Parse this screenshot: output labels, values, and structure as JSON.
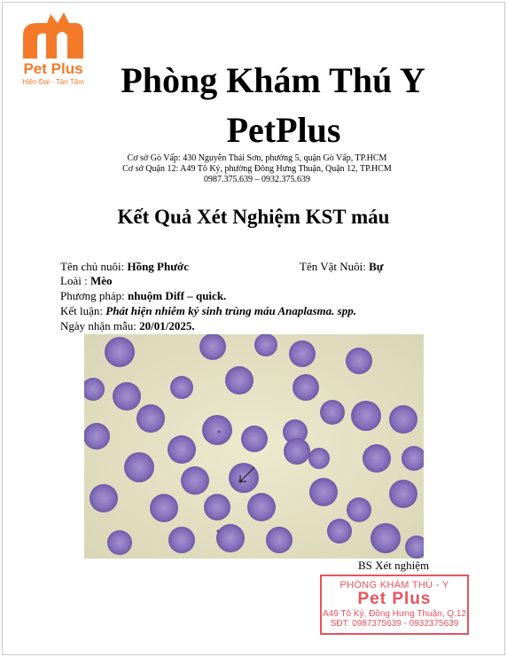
{
  "logo": {
    "name": "Pet Plus",
    "tagline": "Hiện Đại - Tận Tâm"
  },
  "header": {
    "title_line1": "Phòng Khám Thú Y",
    "title_line2": "PetPlus",
    "address1": "Cơ sở Gò Vấp: 430 Nguyễn Thái Sơn, phường 5, quận Gò Vấp, TP.HCM",
    "address2": "Cơ sở Quận 12: A49 Tô Ký, phường Đông Hưng Thuận, Quận 12, TP.HCM",
    "phones": "0987.375.639 – 0932.375.639"
  },
  "report": {
    "title": "Kết Quả Xét Nghiệm KST máu",
    "owner_label": "Tên chủ nuôi: ",
    "owner_value": "Hồng Phước",
    "pet_label": "Tên Vật Nuôi: ",
    "pet_value": "Bự",
    "species_label": "Loài : ",
    "species_value": "Mèo",
    "method_label": "Phương pháp: ",
    "method_value": "nhuộm Diff – quick.",
    "conclusion_label": "Kết luận: ",
    "conclusion_value": "Phát hiện nhiễm ký sinh trùng máu Anaplasma. spp.",
    "date_label": "Ngày nhận mẫu: ",
    "date_value": "20/01/2025."
  },
  "signature": {
    "label": "BS Xét nghiệm"
  },
  "stamp": {
    "line1": "PHÒNG KHÁM THÚ - Y",
    "line2": "Pet Plus",
    "line3": "A49 Tô Ký, Đông Hưng Thuận, Q.12",
    "line4": "SĐT: 0987375639 - 0932375639"
  },
  "colors": {
    "brand_orange": "#f47a2a",
    "stamp_red": "#e8535b",
    "cell_purple": "#8673bd",
    "smear_background": "#e3e1c4"
  }
}
